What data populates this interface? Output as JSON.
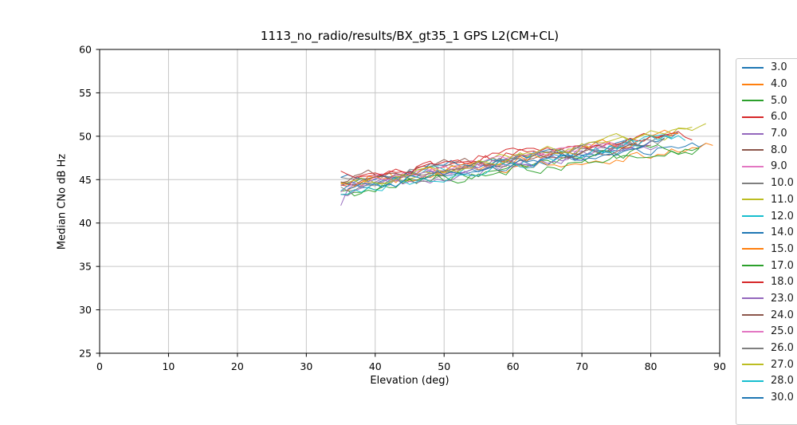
{
  "chart_data": {
    "type": "line",
    "title": "1113_no_radio/results/BX_gt35_1 GPS L2(CM+CL)",
    "xlabel": "Elevation (deg)",
    "ylabel": "Median CNo dB Hz",
    "xlim": [
      0,
      90
    ],
    "ylim": [
      25,
      60
    ],
    "xticks": [
      0,
      10,
      20,
      30,
      40,
      50,
      60,
      70,
      80,
      90
    ],
    "yticks": [
      25,
      30,
      35,
      40,
      45,
      50,
      55,
      60
    ],
    "grid": true,
    "grid_color": "#c6c6c6",
    "spine_color": "#000000",
    "legend_position": "right-outside",
    "legend_clipped_at_figure_bottom": true,
    "x_resolution_deg": 1,
    "estimation_note": "20+ overlapping noisy satellite-PRN traces; each series estimated as trend y(x)=y_start+(y_end-y_start)*t^curve (t normalized x) plus ~±0.5 dB AR(1) jitter reproduced via seeded PRNG",
    "series": [
      {
        "label": "3.0",
        "color": "#1f77b4",
        "x_start": 35,
        "x_end": 88,
        "y_start": 44.3,
        "y_end": 49.2,
        "curve": 0.9,
        "noise": 1.1,
        "seed": 11
      },
      {
        "label": "4.0",
        "color": "#ff7f0e",
        "x_start": 35,
        "x_end": 89,
        "y_start": 44.8,
        "y_end": 48.8,
        "curve": 0.95,
        "noise": 1.2,
        "seed": 22
      },
      {
        "label": "5.0",
        "color": "#2ca02c",
        "x_start": 35,
        "x_end": 87,
        "y_start": 43.3,
        "y_end": 48.8,
        "curve": 0.9,
        "noise": 1.3,
        "seed": 33
      },
      {
        "label": "6.0",
        "color": "#d62728",
        "x_start": 35,
        "x_end": 84,
        "y_start": 44.6,
        "y_end": 50.0,
        "curve": 0.8,
        "noise": 1.2,
        "seed": 44
      },
      {
        "label": "7.0",
        "color": "#9467bd",
        "x_start": 35,
        "x_end": 81,
        "y_start": 41.6,
        "y_end": 48.6,
        "curve": 0.35,
        "noise": 1.2,
        "seed": 55
      },
      {
        "label": "8.0",
        "color": "#8c564b",
        "x_start": 35,
        "x_end": 80,
        "y_start": 45.3,
        "y_end": 49.0,
        "curve": 0.9,
        "noise": 1.0,
        "seed": 66
      },
      {
        "label": "9.0",
        "color": "#e377c2",
        "x_start": 35,
        "x_end": 77,
        "y_start": 44.1,
        "y_end": 49.4,
        "curve": 0.85,
        "noise": 1.1,
        "seed": 77
      },
      {
        "label": "10.0",
        "color": "#7f7f7f",
        "x_start": 35,
        "x_end": 83,
        "y_start": 44.9,
        "y_end": 49.6,
        "curve": 0.9,
        "noise": 1.0,
        "seed": 88
      },
      {
        "label": "11.0",
        "color": "#bcbd22",
        "x_start": 35,
        "x_end": 88,
        "y_start": 44.4,
        "y_end": 51.0,
        "curve": 1.0,
        "noise": 1.1,
        "seed": 99
      },
      {
        "label": "12.0",
        "color": "#17becf",
        "x_start": 35,
        "x_end": 84,
        "y_start": 43.6,
        "y_end": 50.3,
        "curve": 0.9,
        "noise": 1.3,
        "seed": 110
      },
      {
        "label": "14.0",
        "color": "#1f77b4",
        "x_start": 35,
        "x_end": 82,
        "y_start": 45.0,
        "y_end": 49.4,
        "curve": 0.9,
        "noise": 1.1,
        "seed": 121
      },
      {
        "label": "15.0",
        "color": "#ff7f0e",
        "x_start": 36,
        "x_end": 84,
        "y_start": 43.9,
        "y_end": 50.4,
        "curve": 0.9,
        "noise": 1.2,
        "seed": 132
      },
      {
        "label": "17.0",
        "color": "#2ca02c",
        "x_start": 35,
        "x_end": 87,
        "y_start": 43.1,
        "y_end": 48.9,
        "curve": 0.85,
        "noise": 1.3,
        "seed": 143
      },
      {
        "label": "18.0",
        "color": "#d62728",
        "x_start": 35,
        "x_end": 86,
        "y_start": 45.5,
        "y_end": 50.2,
        "curve": 0.9,
        "noise": 1.1,
        "seed": 154
      },
      {
        "label": "23.0",
        "color": "#9467bd",
        "x_start": 35,
        "x_end": 80,
        "y_start": 43.4,
        "y_end": 49.0,
        "curve": 0.9,
        "noise": 1.1,
        "seed": 165
      },
      {
        "label": "24.0",
        "color": "#8c564b",
        "x_start": 35,
        "x_end": 78,
        "y_start": 44.7,
        "y_end": 48.8,
        "curve": 0.9,
        "noise": 1.0,
        "seed": 176
      },
      {
        "label": "25.0",
        "color": "#e377c2",
        "x_start": 36,
        "x_end": 76,
        "y_start": 44.2,
        "y_end": 49.3,
        "curve": 0.9,
        "noise": 1.0,
        "seed": 187
      },
      {
        "label": "26.0",
        "color": "#7f7f7f",
        "x_start": 35,
        "x_end": 82,
        "y_start": 43.8,
        "y_end": 49.8,
        "curve": 0.9,
        "noise": 1.1,
        "seed": 198
      },
      {
        "label": "27.0",
        "color": "#bcbd22",
        "x_start": 37,
        "x_end": 86,
        "y_start": 44.5,
        "y_end": 50.8,
        "curve": 0.95,
        "noise": 1.1,
        "seed": 209
      },
      {
        "label": "28.0",
        "color": "#17becf",
        "x_start": 35,
        "x_end": 85,
        "y_start": 43.0,
        "y_end": 49.9,
        "curve": 0.85,
        "noise": 1.2,
        "seed": 220
      },
      {
        "label": "30.0",
        "color": "#1f77b4",
        "x_start": 36,
        "x_end": 79,
        "y_start": 44.0,
        "y_end": 48.5,
        "curve": 0.9,
        "noise": 1.1,
        "seed": 231,
        "legend_clipped": true
      }
    ]
  }
}
